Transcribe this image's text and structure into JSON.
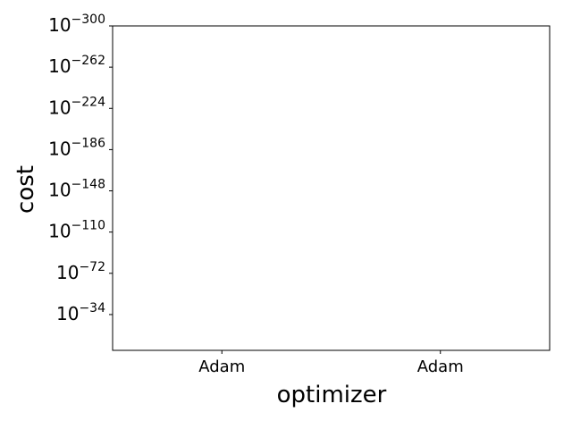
{
  "chart_data": {
    "type": "bar",
    "x_label": "optimizer",
    "y_label": "cost",
    "categories": [
      "Adam",
      "Adam"
    ],
    "log_y": true,
    "ylim": [
      0.1,
      1e-300
    ],
    "yticks": [
      {
        "value": 1e-300,
        "label": "10−300"
      },
      {
        "value": 1e-262,
        "label": "10−262"
      },
      {
        "value": 1e-224,
        "label": "10−224"
      },
      {
        "value": 1e-186,
        "label": "10−186"
      },
      {
        "value": 1e-148,
        "label": "10−148"
      },
      {
        "value": 1e-110,
        "label": "10−110"
      },
      {
        "value": 1e-72,
        "label": "10−72"
      },
      {
        "value": 1e-34,
        "label": "10−34"
      }
    ]
  }
}
